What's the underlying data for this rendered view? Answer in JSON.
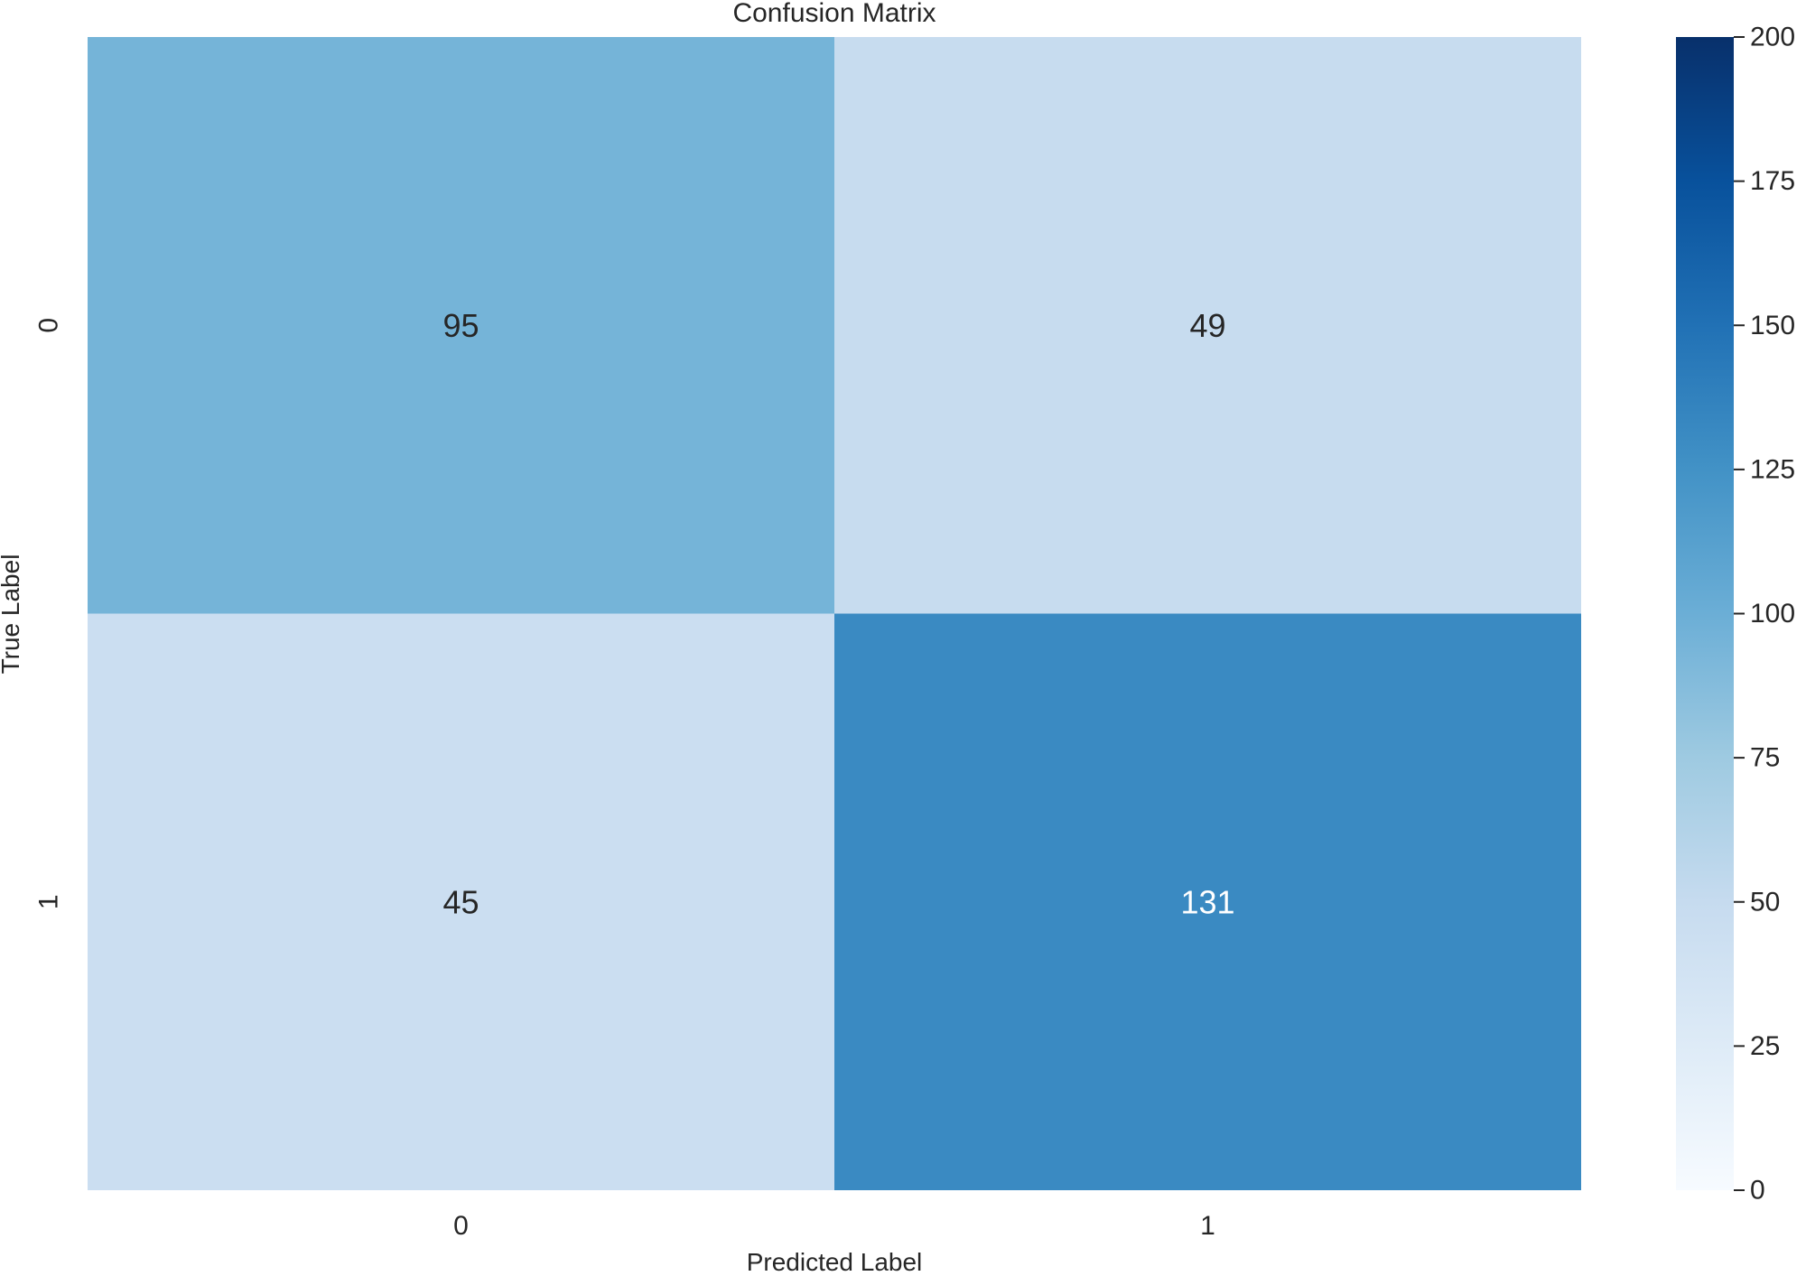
{
  "chart_data": {
    "type": "heatmap",
    "title": "Confusion Matrix",
    "xlabel": "Predicted Label",
    "ylabel": "True Label",
    "x_categories": [
      "0",
      "1"
    ],
    "y_categories": [
      "0",
      "1"
    ],
    "values": [
      [
        95,
        49
      ],
      [
        45,
        131
      ]
    ],
    "colormap": "Blues",
    "colorbar": {
      "range": [
        0,
        200
      ],
      "ticks": [
        0,
        25,
        50,
        75,
        100,
        125,
        150,
        175,
        200
      ],
      "tick_labels": [
        "0",
        "25",
        "50",
        "75",
        "100",
        "125",
        "150",
        "175",
        "200"
      ]
    },
    "legend": "colorbar-right"
  }
}
